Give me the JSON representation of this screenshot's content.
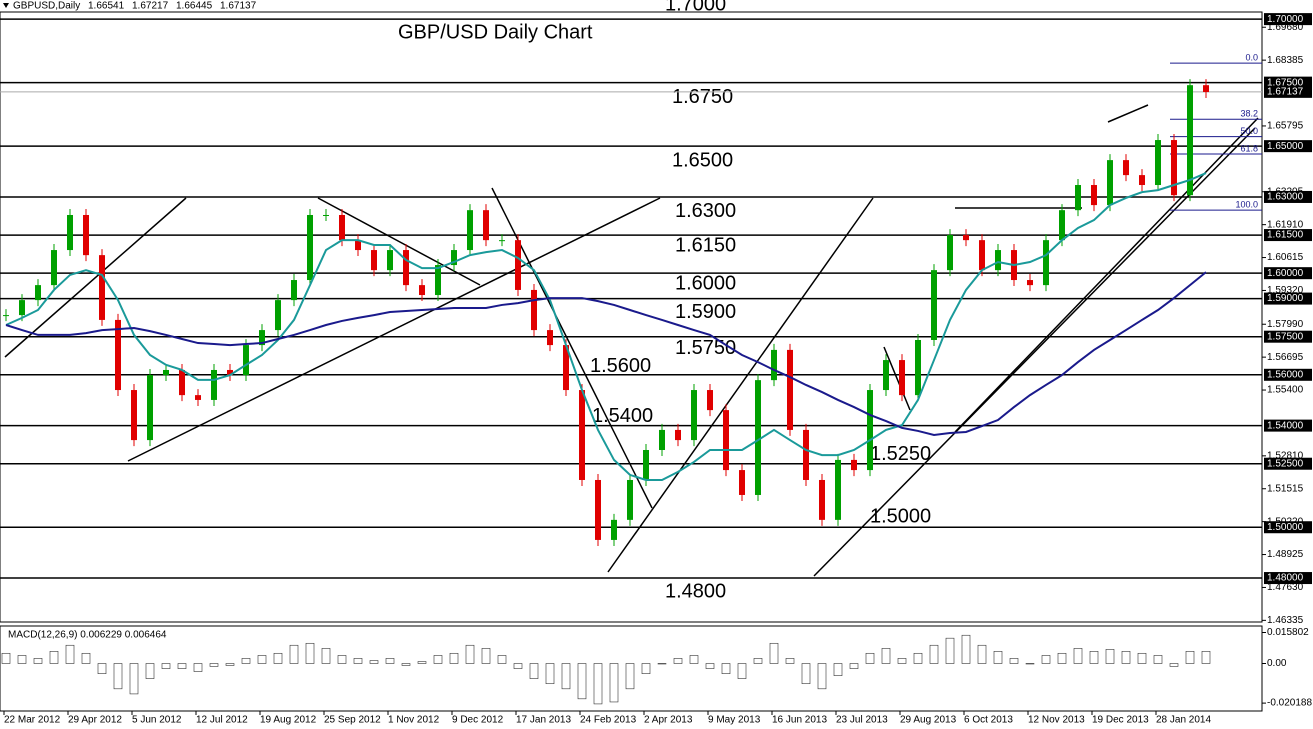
{
  "chart_data": {
    "type": "candlestick",
    "title": "GBP/USD Daily Chart",
    "symbol": "GBPUSD,Daily",
    "ohlc": [
      1.66541,
      1.67217,
      1.66445,
      1.67137
    ],
    "categories": [
      "22 Mar 2012",
      null,
      null,
      null,
      "29 Apr 2012",
      null,
      null,
      null,
      "5 Jun 2012",
      null,
      null,
      null,
      "12 Jul 2012",
      null,
      null,
      null,
      "19 Aug 2012",
      null,
      null,
      null,
      "25 Sep 2012",
      null,
      null,
      null,
      "1 Nov 2012",
      null,
      null,
      null,
      "9 Dec 2012",
      null,
      null,
      null,
      "17 Jan 2013",
      null,
      null,
      null,
      "24 Feb 2013",
      null,
      null,
      null,
      "2 Apr 2013",
      null,
      null,
      null,
      "9 May 2013",
      null,
      null,
      null,
      "16 Jun 2013",
      null,
      null,
      null,
      "23 Jul 2013",
      null,
      null,
      null,
      "29 Aug 2013",
      null,
      null,
      null,
      "6 Oct 2013",
      null,
      null,
      null,
      "12 Nov 2013",
      null,
      null,
      null,
      "19 Dec 2013",
      null,
      null,
      null,
      "28 Jan 2014",
      null,
      null,
      null
    ],
    "values": [
      1.5835,
      1.5894,
      1.5953,
      1.6091,
      1.6229,
      1.6071,
      1.5816,
      1.554,
      1.5343,
      1.5599,
      1.5619,
      1.552,
      1.5501,
      1.5619,
      1.5599,
      1.5717,
      1.5776,
      1.5894,
      1.5973,
      1.6229,
      1.6229,
      1.613,
      1.6091,
      1.6012,
      1.6091,
      1.5953,
      1.5914,
      1.6032,
      1.6091,
      1.6248,
      1.613,
      1.613,
      1.5934,
      1.5776,
      1.5717,
      1.554,
      1.5186,
      1.495,
      1.5029,
      1.5186,
      1.5304,
      1.5383,
      1.5343,
      1.554,
      1.5461,
      1.5225,
      1.5127,
      1.5579,
      1.5698,
      1.5383,
      1.5186,
      1.5029,
      1.5265,
      1.5225,
      1.554,
      1.5658,
      1.552,
      1.5737,
      1.6012,
      1.615,
      1.613,
      1.6012,
      1.6091,
      1.5973,
      1.5953,
      1.613,
      1.6248,
      1.6347,
      1.6268,
      1.6445,
      1.6386,
      1.6347,
      1.6524,
      1.6307,
      1.674,
      1.6713
    ],
    "up_color": "#00a000",
    "down_color": "#e00000",
    "ma_fast": {
      "color": "#1a9a9a",
      "values": [
        1.5796,
        1.5824,
        1.5855,
        1.5934,
        1.5993,
        1.6012,
        1.5993,
        1.5894,
        1.5757,
        1.5678,
        1.5639,
        1.5619,
        1.558,
        1.558,
        1.5599,
        1.5639,
        1.5678,
        1.5737,
        1.5816,
        1.5953,
        1.6091,
        1.613,
        1.613,
        1.6111,
        1.6111,
        1.6052,
        1.602,
        1.602,
        1.6044,
        1.6071,
        1.6083,
        1.6091,
        1.606,
        1.6012,
        1.5894,
        1.5717,
        1.554,
        1.5383,
        1.5265,
        1.5206,
        1.5186,
        1.5186,
        1.5218,
        1.5257,
        1.5304,
        1.5304,
        1.5304,
        1.5343,
        1.5383,
        1.5343,
        1.5304,
        1.5284,
        1.5284,
        1.5304,
        1.5343,
        1.5383,
        1.5402,
        1.5501,
        1.5658,
        1.5816,
        1.5934,
        1.6012,
        1.6044,
        1.6032,
        1.6044,
        1.6071,
        1.613,
        1.6178,
        1.6209,
        1.6268,
        1.6296,
        1.6319,
        1.6327,
        1.6347,
        1.6367,
        1.6394
      ]
    },
    "ma_slow": {
      "color": "#1a1a8c",
      "values": [
        1.5796,
        1.5776,
        1.5757,
        1.5757,
        1.5757,
        1.5764,
        1.5776,
        1.578,
        1.5784,
        1.5772,
        1.5757,
        1.5741,
        1.5725,
        1.5721,
        1.5717,
        1.5721,
        1.5725,
        1.5741,
        1.5757,
        1.5776,
        1.5796,
        1.5812,
        1.5824,
        1.5835,
        1.5847,
        1.5851,
        1.5855,
        1.5859,
        1.5863,
        1.5863,
        1.5863,
        1.5875,
        1.5882,
        1.5894,
        1.5902,
        1.5902,
        1.5902,
        1.589,
        1.5875,
        1.5855,
        1.5835,
        1.5816,
        1.5796,
        1.5776,
        1.5757,
        1.5717,
        1.5678,
        1.565,
        1.5619,
        1.5591,
        1.556,
        1.5532,
        1.5501,
        1.5473,
        1.5442,
        1.5418,
        1.5391,
        1.5379,
        1.5363,
        1.5371,
        1.5375,
        1.5398,
        1.5422,
        1.5473,
        1.552,
        1.556,
        1.5599,
        1.565,
        1.5698,
        1.5737,
        1.5776,
        1.5816,
        1.5855,
        1.5902,
        1.5953,
        1.6004
      ]
    },
    "ylim": [
      1.4627,
      1.7028
    ],
    "yticks": [
      {
        "value": 1.6968,
        "label": "1.69680"
      },
      1.68385,
      1.65795,
      1.63205,
      {
        "value": 1.6191,
        "label": "1.61910"
      },
      1.60615,
      {
        "value": 1.5932,
        "label": "1.59320"
      },
      {
        "value": 1.5799,
        "label": "1.57990"
      },
      1.56695,
      {
        "value": 1.554,
        "label": "1.55400"
      },
      {
        "value": 1.5281,
        "label": "1.52810"
      },
      1.51515,
      {
        "value": 1.5022,
        "label": "1.50220"
      },
      1.48925,
      {
        "value": 1.4763,
        "label": "1.47630"
      },
      1.46335
    ],
    "levels": [
      {
        "value": 1.7,
        "label": "1.7000",
        "axis_label": "1.70000"
      },
      {
        "value": 1.675,
        "label": "1.6750",
        "axis_label": "1.67500"
      },
      {
        "value": 1.65,
        "label": "1.6500",
        "axis_label": "1.65000"
      },
      {
        "value": 1.63,
        "label": "1.6300",
        "axis_label": "1.63000"
      },
      {
        "value": 1.615,
        "label": "1.6150",
        "axis_label": "1.61500"
      },
      {
        "value": 1.6,
        "label": "1.6000",
        "axis_label": "1.60000"
      },
      {
        "value": 1.59,
        "label": "1.5900",
        "axis_label": "1.59000"
      },
      {
        "value": 1.575,
        "label": "1.5750",
        "axis_label": "1.57500"
      },
      {
        "value": 1.56,
        "label": "1.5600",
        "axis_label": "1.56000"
      },
      {
        "value": 1.54,
        "label": "1.5400",
        "axis_label": "1.54000"
      },
      {
        "value": 1.525,
        "label": "1.5250",
        "axis_label": "1.52500"
      },
      {
        "value": 1.5,
        "label": "1.5000",
        "axis_label": "1.50000"
      },
      {
        "value": 1.48,
        "label": "1.4800",
        "axis_label": "1.48000"
      }
    ],
    "fib": {
      "high": 1.6827,
      "low": 1.6248,
      "color": "#1a1a8c",
      "levels": [
        {
          "value": 0,
          "label": "0.0"
        },
        38.2,
        {
          "value": 50,
          "label": "50.0"
        },
        61.8,
        {
          "value": 100,
          "label": "100.0"
        }
      ]
    },
    "macd": {
      "title": "MACD(12,26,9) 0.006229 0.006464",
      "color": "#333333",
      "ylim": [
        -0.0237,
        0.0186
      ],
      "yticks": [
        0.015802,
        {
          "value": 0,
          "label": "0.00"
        },
        -0.020188
      ],
      "values": [
        0.0052,
        0.0041,
        0.0026,
        0.0062,
        0.0093,
        0.0052,
        -0.0052,
        -0.0129,
        -0.0155,
        -0.0077,
        -0.0026,
        -0.0026,
        -0.0041,
        -0.0015,
        -0.001,
        0.0026,
        0.0041,
        0.0052,
        0.0093,
        0.0103,
        0.0077,
        0.0041,
        0.0026,
        0.0015,
        0.0026,
        -0.001,
        0.001,
        0.0041,
        0.0052,
        0.0093,
        0.0077,
        0.0041,
        -0.0026,
        -0.0077,
        -0.0103,
        -0.0129,
        -0.018,
        -0.0206,
        -0.0196,
        -0.0129,
        -0.0052,
        0,
        0.0026,
        0.0041,
        -0.0026,
        -0.0052,
        -0.0077,
        0.0026,
        0.0103,
        0.0026,
        -0.0103,
        -0.0129,
        -0.0062,
        -0.0026,
        0.0052,
        0.0077,
        0.0026,
        0.0052,
        0.0093,
        0.0129,
        0.0144,
        0.0093,
        0.0062,
        0.0026,
        0,
        0.0041,
        0.0052,
        0.0077,
        0.0062,
        0.0072,
        0.0062,
        0.0052,
        0.0041,
        -0.0015,
        0.0062,
        0.0062
      ]
    }
  }
}
